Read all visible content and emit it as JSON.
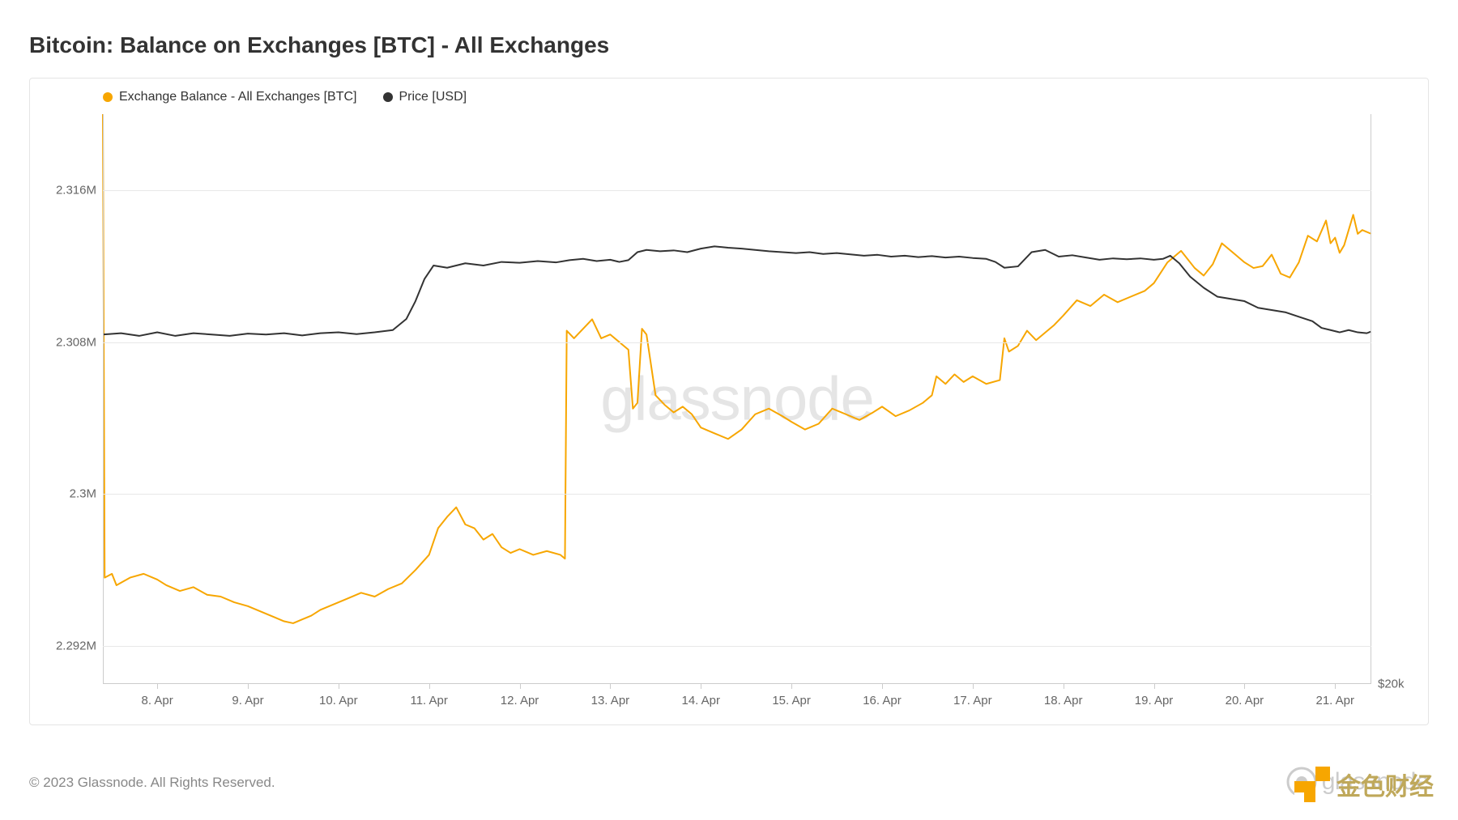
{
  "title": "Bitcoin: Balance on Exchanges [BTC] - All Exchanges",
  "copyright": "© 2023 Glassnode. All Rights Reserved.",
  "watermark": "glassnode",
  "brand_right": "glassnode",
  "overlay_brand": "金色财经",
  "chart": {
    "type": "line",
    "background_color": "#ffffff",
    "grid_color": "#e8e8e8",
    "axis_text_color": "#666666",
    "title_color": "#333333",
    "title_fontsize": 28,
    "label_fontsize": 15,
    "legend": [
      {
        "label": "Exchange Balance - All Exchanges [BTC]",
        "color": "#f7a600"
      },
      {
        "label": "Price [USD]",
        "color": "#333333"
      }
    ],
    "x_axis": {
      "ticks": [
        "8. Apr",
        "9. Apr",
        "10. Apr",
        "11. Apr",
        "12. Apr",
        "13. Apr",
        "14. Apr",
        "15. Apr",
        "16. Apr",
        "17. Apr",
        "18. Apr",
        "19. Apr",
        "20. Apr",
        "21. Apr"
      ],
      "range_days": [
        7.4,
        21.4
      ]
    },
    "y_left": {
      "ticks": [
        {
          "value": 2292000,
          "label": "2.292M"
        },
        {
          "value": 2300000,
          "label": "2.3M"
        },
        {
          "value": 2308000,
          "label": "2.308M"
        },
        {
          "value": 2316000,
          "label": "2.316M"
        }
      ],
      "range": [
        2290000,
        2320000
      ]
    },
    "y_right": {
      "ticks": [
        {
          "value": 20000,
          "label": "$20k"
        }
      ],
      "range": [
        20000,
        32800
      ]
    },
    "series_balance": {
      "color": "#f7a600",
      "line_width": 2,
      "data": [
        [
          7.4,
          2320000
        ],
        [
          7.42,
          2295600
        ],
        [
          7.5,
          2295800
        ],
        [
          7.55,
          2295200
        ],
        [
          7.7,
          2295600
        ],
        [
          7.85,
          2295800
        ],
        [
          8.0,
          2295500
        ],
        [
          8.1,
          2295200
        ],
        [
          8.25,
          2294900
        ],
        [
          8.4,
          2295100
        ],
        [
          8.55,
          2294700
        ],
        [
          8.7,
          2294600
        ],
        [
          8.85,
          2294300
        ],
        [
          9.0,
          2294100
        ],
        [
          9.15,
          2293800
        ],
        [
          9.3,
          2293500
        ],
        [
          9.4,
          2293300
        ],
        [
          9.5,
          2293200
        ],
        [
          9.6,
          2293400
        ],
        [
          9.7,
          2293600
        ],
        [
          9.8,
          2293900
        ],
        [
          9.95,
          2294200
        ],
        [
          10.1,
          2294500
        ],
        [
          10.25,
          2294800
        ],
        [
          10.4,
          2294600
        ],
        [
          10.55,
          2295000
        ],
        [
          10.7,
          2295300
        ],
        [
          10.85,
          2296000
        ],
        [
          11.0,
          2296800
        ],
        [
          11.1,
          2298200
        ],
        [
          11.2,
          2298800
        ],
        [
          11.3,
          2299300
        ],
        [
          11.4,
          2298400
        ],
        [
          11.5,
          2298200
        ],
        [
          11.6,
          2297600
        ],
        [
          11.7,
          2297900
        ],
        [
          11.8,
          2297200
        ],
        [
          11.9,
          2296900
        ],
        [
          12.0,
          2297100
        ],
        [
          12.15,
          2296800
        ],
        [
          12.3,
          2297000
        ],
        [
          12.45,
          2296800
        ],
        [
          12.5,
          2296600
        ],
        [
          12.52,
          2308600
        ],
        [
          12.6,
          2308200
        ],
        [
          12.7,
          2308700
        ],
        [
          12.8,
          2309200
        ],
        [
          12.9,
          2308200
        ],
        [
          13.0,
          2308400
        ],
        [
          13.1,
          2308000
        ],
        [
          13.2,
          2307600
        ],
        [
          13.25,
          2304500
        ],
        [
          13.3,
          2304800
        ],
        [
          13.35,
          2308700
        ],
        [
          13.4,
          2308400
        ],
        [
          13.5,
          2305200
        ],
        [
          13.6,
          2304700
        ],
        [
          13.7,
          2304300
        ],
        [
          13.8,
          2304600
        ],
        [
          13.9,
          2304200
        ],
        [
          14.0,
          2303500
        ],
        [
          14.15,
          2303200
        ],
        [
          14.3,
          2302900
        ],
        [
          14.45,
          2303400
        ],
        [
          14.6,
          2304200
        ],
        [
          14.75,
          2304500
        ],
        [
          14.9,
          2304100
        ],
        [
          15.0,
          2303800
        ],
        [
          15.15,
          2303400
        ],
        [
          15.3,
          2303700
        ],
        [
          15.45,
          2304500
        ],
        [
          15.6,
          2304200
        ],
        [
          15.75,
          2303900
        ],
        [
          15.9,
          2304300
        ],
        [
          16.0,
          2304600
        ],
        [
          16.15,
          2304100
        ],
        [
          16.3,
          2304400
        ],
        [
          16.45,
          2304800
        ],
        [
          16.55,
          2305200
        ],
        [
          16.6,
          2306200
        ],
        [
          16.7,
          2305800
        ],
        [
          16.8,
          2306300
        ],
        [
          16.9,
          2305900
        ],
        [
          17.0,
          2306200
        ],
        [
          17.15,
          2305800
        ],
        [
          17.3,
          2306000
        ],
        [
          17.35,
          2308200
        ],
        [
          17.4,
          2307500
        ],
        [
          17.5,
          2307800
        ],
        [
          17.6,
          2308600
        ],
        [
          17.7,
          2308100
        ],
        [
          17.8,
          2308500
        ],
        [
          17.9,
          2308900
        ],
        [
          18.0,
          2309400
        ],
        [
          18.15,
          2310200
        ],
        [
          18.3,
          2309900
        ],
        [
          18.45,
          2310500
        ],
        [
          18.6,
          2310100
        ],
        [
          18.75,
          2310400
        ],
        [
          18.9,
          2310700
        ],
        [
          19.0,
          2311100
        ],
        [
          19.15,
          2312200
        ],
        [
          19.3,
          2312800
        ],
        [
          19.45,
          2311900
        ],
        [
          19.55,
          2311500
        ],
        [
          19.65,
          2312100
        ],
        [
          19.75,
          2313200
        ],
        [
          19.9,
          2312600
        ],
        [
          20.0,
          2312200
        ],
        [
          20.1,
          2311900
        ],
        [
          20.2,
          2312000
        ],
        [
          20.3,
          2312600
        ],
        [
          20.4,
          2311600
        ],
        [
          20.5,
          2311400
        ],
        [
          20.6,
          2312200
        ],
        [
          20.7,
          2313600
        ],
        [
          20.8,
          2313300
        ],
        [
          20.9,
          2314400
        ],
        [
          20.95,
          2313200
        ],
        [
          21.0,
          2313500
        ],
        [
          21.05,
          2312700
        ],
        [
          21.1,
          2313100
        ],
        [
          21.2,
          2314700
        ],
        [
          21.25,
          2313700
        ],
        [
          21.3,
          2313900
        ],
        [
          21.4,
          2313700
        ]
      ]
    },
    "series_price": {
      "color": "#333333",
      "line_width": 2,
      "data": [
        [
          7.4,
          27850
        ],
        [
          7.6,
          27880
        ],
        [
          7.8,
          27820
        ],
        [
          8.0,
          27900
        ],
        [
          8.2,
          27820
        ],
        [
          8.4,
          27880
        ],
        [
          8.6,
          27850
        ],
        [
          8.8,
          27820
        ],
        [
          9.0,
          27870
        ],
        [
          9.2,
          27850
        ],
        [
          9.4,
          27880
        ],
        [
          9.6,
          27830
        ],
        [
          9.8,
          27880
        ],
        [
          10.0,
          27900
        ],
        [
          10.2,
          27860
        ],
        [
          10.4,
          27900
        ],
        [
          10.6,
          27950
        ],
        [
          10.75,
          28200
        ],
        [
          10.85,
          28600
        ],
        [
          10.95,
          29100
        ],
        [
          11.05,
          29400
        ],
        [
          11.2,
          29350
        ],
        [
          11.4,
          29450
        ],
        [
          11.6,
          29400
        ],
        [
          11.8,
          29480
        ],
        [
          12.0,
          29460
        ],
        [
          12.2,
          29500
        ],
        [
          12.4,
          29470
        ],
        [
          12.55,
          29520
        ],
        [
          12.7,
          29550
        ],
        [
          12.85,
          29500
        ],
        [
          13.0,
          29530
        ],
        [
          13.1,
          29480
        ],
        [
          13.2,
          29520
        ],
        [
          13.3,
          29700
        ],
        [
          13.4,
          29750
        ],
        [
          13.55,
          29720
        ],
        [
          13.7,
          29740
        ],
        [
          13.85,
          29700
        ],
        [
          14.0,
          29780
        ],
        [
          14.15,
          29830
        ],
        [
          14.3,
          29800
        ],
        [
          14.45,
          29780
        ],
        [
          14.6,
          29750
        ],
        [
          14.75,
          29720
        ],
        [
          14.9,
          29700
        ],
        [
          15.05,
          29680
        ],
        [
          15.2,
          29700
        ],
        [
          15.35,
          29660
        ],
        [
          15.5,
          29680
        ],
        [
          15.65,
          29650
        ],
        [
          15.8,
          29620
        ],
        [
          15.95,
          29640
        ],
        [
          16.1,
          29600
        ],
        [
          16.25,
          29620
        ],
        [
          16.4,
          29590
        ],
        [
          16.55,
          29610
        ],
        [
          16.7,
          29580
        ],
        [
          16.85,
          29600
        ],
        [
          17.0,
          29570
        ],
        [
          17.15,
          29550
        ],
        [
          17.25,
          29480
        ],
        [
          17.35,
          29350
        ],
        [
          17.5,
          29380
        ],
        [
          17.65,
          29700
        ],
        [
          17.8,
          29750
        ],
        [
          17.95,
          29600
        ],
        [
          18.1,
          29630
        ],
        [
          18.25,
          29580
        ],
        [
          18.4,
          29530
        ],
        [
          18.55,
          29560
        ],
        [
          18.7,
          29540
        ],
        [
          18.85,
          29560
        ],
        [
          19.0,
          29530
        ],
        [
          19.1,
          29550
        ],
        [
          19.18,
          29620
        ],
        [
          19.28,
          29450
        ],
        [
          19.4,
          29150
        ],
        [
          19.55,
          28900
        ],
        [
          19.7,
          28700
        ],
        [
          19.85,
          28650
        ],
        [
          20.0,
          28600
        ],
        [
          20.15,
          28450
        ],
        [
          20.3,
          28400
        ],
        [
          20.45,
          28350
        ],
        [
          20.6,
          28250
        ],
        [
          20.75,
          28150
        ],
        [
          20.85,
          28000
        ],
        [
          20.95,
          27950
        ],
        [
          21.05,
          27900
        ],
        [
          21.15,
          27950
        ],
        [
          21.25,
          27900
        ],
        [
          21.35,
          27880
        ],
        [
          21.4,
          27920
        ]
      ]
    }
  }
}
